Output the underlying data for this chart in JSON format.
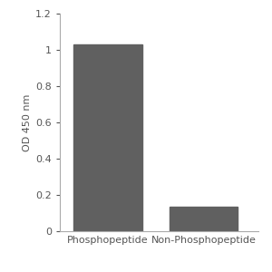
{
  "categories": [
    "Phosphopeptide",
    "Non-Phosphopeptide"
  ],
  "values": [
    1.03,
    0.135
  ],
  "bar_color": "#606060",
  "ylabel": "OD 450 nm",
  "ylim": [
    0,
    1.2
  ],
  "yticks": [
    0,
    0.2,
    0.4,
    0.6,
    0.8,
    1.0,
    1.2
  ],
  "ytick_labels": [
    "0",
    "0.2",
    "0.4",
    "0.6",
    "0.8",
    "1",
    "1.2"
  ],
  "bar_width": 0.5,
  "background_color": "#ffffff",
  "tick_label_fontsize": 8,
  "axis_label_fontsize": 8,
  "spine_color": "#aaaaaa",
  "tick_color": "#555555",
  "bar_positions": [
    0.3,
    1.0
  ]
}
